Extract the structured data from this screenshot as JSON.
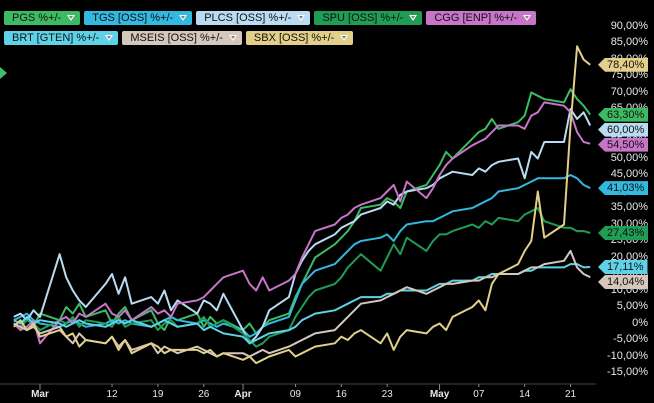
{
  "legend": [
    {
      "label": "PGS %+/-",
      "color": "#3dbb63"
    },
    {
      "label": "TGS [OSS] %+/-",
      "color": "#33b8df"
    },
    {
      "label": "PLCS [OSS] %+/-",
      "color": "#b9dcf2"
    },
    {
      "label": "SPU [OSS] %+/-",
      "color": "#1f9d55"
    },
    {
      "label": "CGG [ENP] %+/-",
      "color": "#c774c9"
    },
    {
      "label": "BRT [GTEN] %+/-",
      "color": "#5fd2e8"
    },
    {
      "label": "MSEIS [OSS] %+/-",
      "color": "#d6c7bd"
    },
    {
      "label": "SBX [OSS] %+/-",
      "color": "#e2cf8a"
    }
  ],
  "end_tags": [
    {
      "label": "78,40%",
      "color": "#e2cf8a",
      "value": 78.4
    },
    {
      "label": "63,30%",
      "color": "#3dbb63",
      "value": 63.3
    },
    {
      "label": "60,00%",
      "color": "#b9dcf2",
      "value": 60.0
    },
    {
      "label": "54,50%",
      "color": "#c774c9",
      "value": 54.5
    },
    {
      "label": "41,03%",
      "color": "#33b8df",
      "value": 41.03
    },
    {
      "label": "27,43%",
      "color": "#1f9d55",
      "value": 27.43
    },
    {
      "label": "17,11%",
      "color": "#5fd2e8",
      "value": 17.11
    },
    {
      "label": "14,04%",
      "color": "#d6c7bd",
      "value": 14.04
    }
  ],
  "chart_data": {
    "type": "line",
    "title": "",
    "xlabel": "",
    "ylabel": "",
    "ylim": [
      -15,
      90
    ],
    "grid": false,
    "legend_position": "top-left",
    "y_ticks": [
      {
        "value": 90,
        "label": "90,00%"
      },
      {
        "value": 85,
        "label": "85,00%"
      },
      {
        "value": 80,
        "label": "80,00%"
      },
      {
        "value": 75,
        "label": "75,00%"
      },
      {
        "value": 70,
        "label": "70,00%"
      },
      {
        "value": 65,
        "label": "65,00%"
      },
      {
        "value": 55,
        "label": "55,00%"
      },
      {
        "value": 50,
        "label": "50,00%"
      },
      {
        "value": 45,
        "label": "45,00%"
      },
      {
        "value": 40,
        "label": "40,00%"
      },
      {
        "value": 35,
        "label": "35,00%"
      },
      {
        "value": 30,
        "label": "30,00%"
      },
      {
        "value": 25,
        "label": "25,00%"
      },
      {
        "value": 20,
        "label": "20,00%"
      },
      {
        "value": 15,
        "label": "15,00%"
      },
      {
        "value": 10,
        "label": "10,00%"
      },
      {
        "value": 5,
        "label": "5,00%"
      },
      {
        "value": 0,
        "label": "0%"
      },
      {
        "value": -5,
        "label": "-5,00%"
      },
      {
        "value": -10,
        "label": "-10,00%"
      },
      {
        "value": -15,
        "label": "-15,00%"
      }
    ],
    "x_ticks": [
      {
        "day": 0,
        "label": "Mar",
        "month": true
      },
      {
        "day": 11,
        "label": "12",
        "month": false
      },
      {
        "day": 18,
        "label": "19",
        "month": false
      },
      {
        "day": 25,
        "label": "26",
        "month": false
      },
      {
        "day": 31,
        "label": "Apr",
        "month": true
      },
      {
        "day": 39,
        "label": "09",
        "month": false
      },
      {
        "day": 46,
        "label": "16",
        "month": false
      },
      {
        "day": 53,
        "label": "23",
        "month": false
      },
      {
        "day": 61,
        "label": "May",
        "month": true
      },
      {
        "day": 67,
        "label": "07",
        "month": false
      },
      {
        "day": 74,
        "label": "14",
        "month": false
      },
      {
        "day": 81,
        "label": "21",
        "month": false
      }
    ],
    "x": [
      -4,
      -3,
      -2,
      -1,
      0,
      3,
      4,
      5,
      6,
      7,
      10,
      11,
      12,
      13,
      14,
      17,
      18,
      19,
      20,
      21,
      24,
      25,
      26,
      27,
      28,
      31,
      32,
      33,
      34,
      35,
      38,
      39,
      40,
      41,
      42,
      45,
      46,
      47,
      48,
      49,
      52,
      53,
      54,
      55,
      56,
      59,
      60,
      61,
      62,
      63,
      66,
      67,
      68,
      69,
      70,
      73,
      74,
      75,
      76,
      77,
      80,
      81,
      82,
      83,
      84
    ],
    "series": [
      {
        "name": "PGS %+/-",
        "color": "#3dbb63",
        "values": [
          0,
          -2,
          2,
          -1,
          3,
          1,
          5,
          3,
          6,
          2,
          4,
          0,
          3,
          5,
          1,
          4,
          0,
          -2,
          2,
          1,
          3,
          -1,
          2,
          0,
          1,
          -2,
          0,
          -3,
          -1,
          1,
          3,
          8,
          12,
          16,
          20,
          24,
          26,
          28,
          31,
          35,
          36,
          38,
          37,
          35,
          40,
          42,
          45,
          48,
          52,
          50,
          56,
          58,
          59,
          62,
          59,
          61,
          63,
          70,
          69,
          68,
          67,
          71,
          68,
          66,
          63.3
        ]
      },
      {
        "name": "TGS [OSS] %+/-",
        "color": "#33b8df",
        "values": [
          1,
          2,
          3,
          1,
          0,
          -1,
          0,
          1,
          0,
          -1,
          0,
          1,
          0,
          1,
          0,
          -1,
          0,
          1,
          2,
          1,
          0,
          1,
          0,
          -1,
          0,
          -2,
          -4,
          -3,
          -1,
          0,
          2,
          7,
          12,
          14,
          16,
          18,
          20,
          22,
          24,
          25,
          26,
          27,
          25,
          28,
          30,
          31,
          31,
          32,
          33,
          34,
          35,
          36,
          37,
          38,
          40,
          41,
          42,
          43,
          44,
          44,
          44,
          45,
          44,
          42,
          41.03
        ]
      },
      {
        "name": "PLCS [OSS] %+/-",
        "color": "#b9dcf2",
        "values": [
          2,
          3,
          1,
          4,
          2,
          21,
          14,
          10,
          7,
          5,
          12,
          15,
          9,
          14,
          6,
          8,
          6,
          10,
          4,
          7,
          3,
          7,
          6,
          4,
          9,
          -2,
          -6,
          -4,
          -1,
          4,
          8,
          15,
          19,
          22,
          24,
          27,
          29,
          30,
          31,
          33,
          35,
          37,
          36,
          39,
          40,
          41,
          42,
          44,
          45,
          46,
          45,
          47,
          46,
          48,
          49,
          50,
          44,
          52,
          50,
          55,
          55,
          65,
          62,
          64,
          60.0
        ]
      },
      {
        "name": "SPU [OSS] %+/-",
        "color": "#1f9d55",
        "values": [
          0,
          -1,
          1,
          0,
          -2,
          1,
          0,
          2,
          -1,
          1,
          0,
          -1,
          2,
          -1,
          0,
          1,
          -2,
          0,
          1,
          -1,
          0,
          2,
          -1,
          0,
          1,
          -3,
          -5,
          -7,
          -6,
          -4,
          -2,
          2,
          5,
          8,
          10,
          12,
          14,
          17,
          19,
          21,
          16,
          20,
          24,
          21,
          26,
          22,
          25,
          27,
          27,
          28,
          30,
          29,
          31,
          30,
          32,
          31,
          33,
          34,
          35,
          31,
          29,
          29,
          28,
          28,
          27.43
        ]
      },
      {
        "name": "CGG [ENP] %+/-",
        "color": "#c774c9",
        "values": [
          0,
          -2,
          -1,
          1,
          -6,
          1,
          2,
          0,
          3,
          2,
          6,
          3,
          2,
          4,
          1,
          5,
          3,
          4,
          2,
          6,
          7,
          8,
          10,
          12,
          14,
          16,
          12,
          10,
          14,
          10,
          13,
          15,
          20,
          24,
          28,
          30,
          32,
          33,
          35,
          36,
          38,
          40,
          42,
          37,
          43,
          38,
          41,
          45,
          48,
          50,
          54,
          55,
          56,
          58,
          60,
          60,
          59,
          63,
          64,
          67,
          66,
          64,
          58,
          55,
          54.5
        ]
      },
      {
        "name": "BRT [GTEN] %+/-",
        "color": "#5fd2e8",
        "values": [
          1,
          0,
          2,
          0,
          1,
          0,
          -1,
          0,
          1,
          0,
          -1,
          0,
          1,
          0,
          1,
          -1,
          0,
          1,
          0,
          -1,
          0,
          -2,
          -1,
          -2,
          -3,
          -4,
          -6,
          -5,
          -4,
          -3,
          -2,
          -1,
          1,
          2,
          3,
          4,
          5,
          6,
          7,
          8,
          8,
          9,
          9,
          10,
          10,
          10,
          11,
          12,
          12,
          13,
          13,
          14,
          14,
          15,
          15,
          15,
          16,
          16,
          17,
          17,
          17,
          18,
          18,
          17,
          17.11
        ]
      },
      {
        "name": "MSEIS [OSS] %+/-",
        "color": "#d6c7bd",
        "values": [
          0,
          -1,
          -2,
          -1,
          -3,
          -1,
          -4,
          -6,
          -3,
          -5,
          -6,
          -4,
          -7,
          -5,
          -8,
          -6,
          -9,
          -7,
          -8,
          -9,
          -7,
          -8,
          -9,
          -10,
          -9,
          -9,
          -10,
          -9,
          -8,
          -9,
          -7,
          -6,
          -5,
          -4,
          -3,
          -2,
          0,
          2,
          4,
          6,
          7,
          8,
          9,
          10,
          11,
          9,
          10,
          11,
          12,
          12,
          13,
          13,
          14,
          14,
          15,
          15,
          16,
          17,
          17,
          18,
          19,
          22,
          17,
          15,
          14.04
        ]
      },
      {
        "name": "SBX [OSS] %+/-",
        "color": "#e2cf8a",
        "values": [
          -1,
          1,
          -2,
          0,
          -4,
          -2,
          -4,
          -3,
          -7,
          -5,
          -6,
          -4,
          -8,
          -5,
          -9,
          -6,
          -7,
          -9,
          -8,
          -8,
          -8,
          -9,
          -8,
          -10,
          -9,
          -11,
          -10,
          -12,
          -11,
          -10,
          -8,
          -10,
          -9,
          -8,
          -7,
          -6,
          -4,
          -5,
          -3,
          -2,
          -6,
          -3,
          -8,
          -4,
          -2,
          -3,
          -1,
          0,
          -2,
          2,
          5,
          7,
          4,
          12,
          15,
          18,
          22,
          25,
          40,
          26,
          30,
          60,
          84,
          80,
          78.4
        ]
      }
    ]
  }
}
